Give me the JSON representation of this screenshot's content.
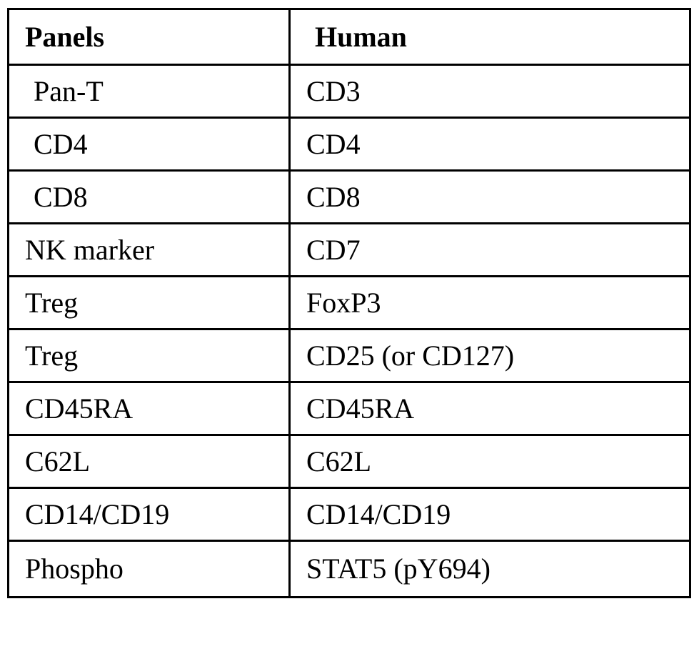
{
  "table": {
    "headers": [
      "Panels",
      "Human"
    ],
    "rows": [
      [
        "Pan-T",
        "CD3"
      ],
      [
        "CD4",
        "CD4"
      ],
      [
        "CD8",
        "CD8"
      ],
      [
        "NK marker",
        "CD7"
      ],
      [
        "Treg",
        "FoxP3"
      ],
      [
        "Treg",
        "CD25 (or CD127)"
      ],
      [
        "CD45RA",
        "CD45RA"
      ],
      [
        "C62L",
        "C62L"
      ],
      [
        "CD14/CD19",
        "CD14/CD19"
      ],
      [
        "Phospho",
        "STAT5 (pY694)"
      ]
    ]
  }
}
